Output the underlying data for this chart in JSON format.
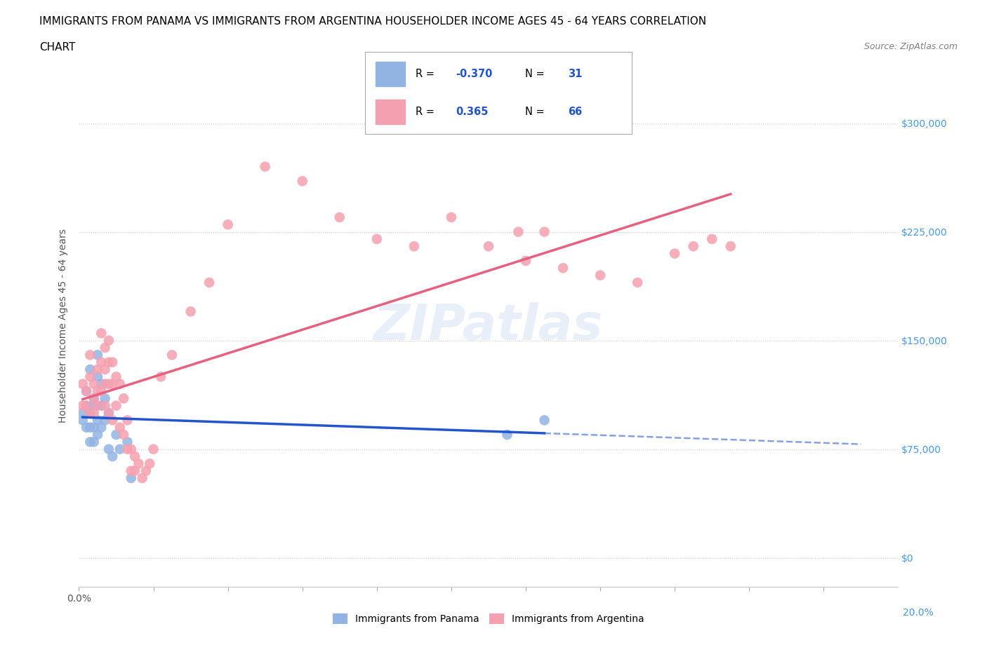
{
  "title_line1": "IMMIGRANTS FROM PANAMA VS IMMIGRANTS FROM ARGENTINA HOUSEHOLDER INCOME AGES 45 - 64 YEARS CORRELATION",
  "title_line2": "CHART",
  "source_text": "Source: ZipAtlas.com",
  "ylabel": "Householder Income Ages 45 - 64 years",
  "watermark": "ZIPatlas",
  "xlim": [
    0.0,
    0.22
  ],
  "ylim": [
    -20000,
    340000
  ],
  "yticks": [
    0,
    75000,
    150000,
    225000,
    300000
  ],
  "ytick_labels_right": [
    "$0",
    "$75,000",
    "$150,000",
    "$225,000",
    "$300,000"
  ],
  "xticks": [
    0.0,
    0.02,
    0.04,
    0.06,
    0.08,
    0.1,
    0.12,
    0.14,
    0.16,
    0.18,
    0.2
  ],
  "panama_color": "#92b4e3",
  "argentina_color": "#f5a0b0",
  "panama_line_color": "#2255cc",
  "argentina_line_color": "#e86080",
  "R_panama": "-0.370",
  "N_panama": "31",
  "R_argentina": "0.365",
  "N_argentina": "66",
  "panama_x": [
    0.001,
    0.001,
    0.002,
    0.002,
    0.002,
    0.003,
    0.003,
    0.003,
    0.003,
    0.004,
    0.004,
    0.004,
    0.004,
    0.005,
    0.005,
    0.005,
    0.005,
    0.006,
    0.006,
    0.006,
    0.007,
    0.007,
    0.008,
    0.008,
    0.009,
    0.01,
    0.011,
    0.013,
    0.014,
    0.115,
    0.125
  ],
  "panama_y": [
    100000,
    95000,
    90000,
    105000,
    115000,
    130000,
    100000,
    90000,
    80000,
    110000,
    105000,
    90000,
    80000,
    140000,
    125000,
    95000,
    85000,
    120000,
    105000,
    90000,
    110000,
    95000,
    100000,
    75000,
    70000,
    85000,
    75000,
    80000,
    55000,
    85000,
    95000
  ],
  "argentina_x": [
    0.001,
    0.001,
    0.002,
    0.002,
    0.003,
    0.003,
    0.003,
    0.004,
    0.004,
    0.004,
    0.005,
    0.005,
    0.005,
    0.006,
    0.006,
    0.006,
    0.007,
    0.007,
    0.007,
    0.007,
    0.008,
    0.008,
    0.008,
    0.008,
    0.009,
    0.009,
    0.009,
    0.01,
    0.01,
    0.011,
    0.011,
    0.012,
    0.012,
    0.013,
    0.013,
    0.014,
    0.014,
    0.015,
    0.015,
    0.016,
    0.017,
    0.018,
    0.019,
    0.02,
    0.022,
    0.025,
    0.03,
    0.035,
    0.04,
    0.05,
    0.06,
    0.07,
    0.08,
    0.09,
    0.1,
    0.11,
    0.12,
    0.13,
    0.14,
    0.15,
    0.16,
    0.165,
    0.17,
    0.175,
    0.118,
    0.125
  ],
  "argentina_y": [
    105000,
    120000,
    115000,
    105000,
    125000,
    140000,
    100000,
    120000,
    110000,
    100000,
    130000,
    115000,
    105000,
    155000,
    135000,
    115000,
    145000,
    130000,
    120000,
    105000,
    150000,
    135000,
    120000,
    100000,
    135000,
    120000,
    95000,
    125000,
    105000,
    120000,
    90000,
    110000,
    85000,
    95000,
    75000,
    75000,
    60000,
    70000,
    60000,
    65000,
    55000,
    60000,
    65000,
    75000,
    125000,
    140000,
    170000,
    190000,
    230000,
    270000,
    260000,
    235000,
    220000,
    215000,
    235000,
    215000,
    205000,
    200000,
    195000,
    190000,
    210000,
    215000,
    220000,
    215000,
    225000,
    225000
  ],
  "grid_color": "#cccccc",
  "background_color": "#ffffff",
  "right_ytick_color": "#4499ee",
  "legend_label_panama": "Immigrants from Panama",
  "legend_label_argentina": "Immigrants from Argentina"
}
